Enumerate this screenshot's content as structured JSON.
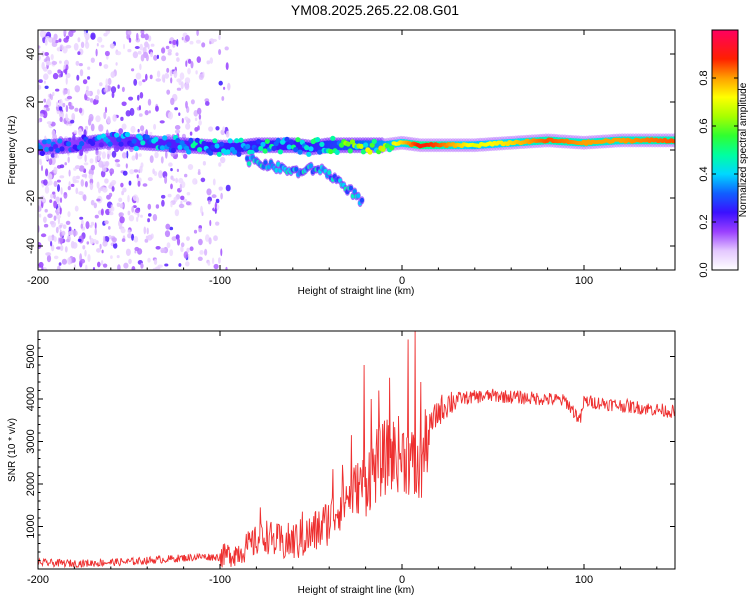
{
  "title": "YM08.2025.265.22.08.G01",
  "chart_data": [
    {
      "type": "heatmap",
      "xlabel": "Height of straight line (km)",
      "ylabel": "Frequency (Hz)",
      "xlim": [
        -200,
        150
      ],
      "ylim": [
        -50,
        50
      ],
      "xticks": [
        -200,
        -100,
        0,
        100
      ],
      "yticks": [
        -40,
        -20,
        0,
        20,
        40
      ],
      "colorbar": {
        "label": "Normalized spectral amplitude",
        "range": [
          0,
          1
        ],
        "ticks": [
          "0.0",
          "0.2",
          "0.4",
          "0.6",
          "0.8"
        ],
        "tick_values": [
          0.0,
          0.2,
          0.4,
          0.6,
          0.8
        ]
      },
      "ridge": {
        "x": [
          -200,
          -180,
          -160,
          -140,
          -120,
          -100,
          -90,
          -80,
          -70,
          -60,
          -50,
          -40,
          -30,
          -20,
          -10,
          0,
          10,
          20,
          40,
          60,
          80,
          100,
          120,
          150
        ],
        "freq": [
          1,
          2,
          4,
          3,
          2,
          1,
          1,
          2,
          2,
          2,
          1,
          2,
          2,
          2,
          2,
          3,
          2,
          2,
          2,
          3,
          4,
          3,
          4,
          4
        ],
        "amplitude": [
          0.3,
          0.3,
          0.35,
          0.4,
          0.4,
          0.45,
          0.45,
          0.45,
          0.45,
          0.45,
          0.45,
          0.5,
          0.55,
          0.6,
          0.65,
          0.75,
          0.9,
          0.85,
          0.7,
          0.75,
          0.85,
          0.8,
          0.8,
          0.85
        ]
      },
      "branch": {
        "x": [
          -85,
          -80,
          -75,
          -70,
          -65,
          -60,
          -55,
          -50,
          -45,
          -40,
          -35,
          -30,
          -25,
          -22
        ],
        "freq": [
          -4,
          -5,
          -6,
          -7,
          -8,
          -9,
          -9,
          -8,
          -8,
          -10,
          -13,
          -16,
          -19,
          -22
        ]
      }
    },
    {
      "type": "line",
      "xlabel": "Height of straight line (km)",
      "ylabel": "SNR (10 * v/v)",
      "xlim": [
        -200,
        150
      ],
      "ylim": [
        0,
        5600
      ],
      "xticks": [
        -200,
        -100,
        0,
        100
      ],
      "yticks": [
        1000,
        2000,
        3000,
        4000,
        5000
      ],
      "line_color": "#ee3030",
      "series": [
        {
          "name": "SNR",
          "x": [
            -200,
            -190,
            -180,
            -170,
            -160,
            -150,
            -140,
            -130,
            -120,
            -110,
            -100,
            -90,
            -80,
            -75,
            -70,
            -65,
            -60,
            -55,
            -50,
            -45,
            -40,
            -35,
            -30,
            -25,
            -20,
            -15,
            -10,
            -5,
            0,
            5,
            8,
            10,
            15,
            20,
            25,
            30,
            40,
            50,
            60,
            70,
            80,
            90,
            98,
            100,
            110,
            120,
            130,
            140,
            150
          ],
          "y": [
            150,
            140,
            130,
            140,
            160,
            170,
            200,
            230,
            260,
            290,
            280,
            400,
            650,
            800,
            650,
            600,
            650,
            700,
            800,
            950,
            1150,
            1450,
            1700,
            1900,
            2100,
            2400,
            2600,
            2700,
            2700,
            2550,
            2200,
            2300,
            3300,
            3700,
            3900,
            4000,
            4050,
            4080,
            4050,
            4020,
            4000,
            3950,
            3500,
            3950,
            3900,
            3850,
            3800,
            3750,
            3700
          ]
        }
      ],
      "spikes": [
        {
          "x": -78,
          "y": 1450
        },
        {
          "x": -68,
          "y": 1050
        },
        {
          "x": -55,
          "y": 1350
        },
        {
          "x": -38,
          "y": 2350
        },
        {
          "x": -33,
          "y": 2450
        },
        {
          "x": -28,
          "y": 3150
        },
        {
          "x": -21,
          "y": 4800
        },
        {
          "x": -17,
          "y": 4000
        },
        {
          "x": -13,
          "y": 4200
        },
        {
          "x": -7,
          "y": 4500
        },
        {
          "x": -2,
          "y": 3600
        },
        {
          "x": 3,
          "y": 5400
        },
        {
          "x": 7,
          "y": 5600
        },
        {
          "x": 10,
          "y": 4400
        }
      ]
    }
  ]
}
